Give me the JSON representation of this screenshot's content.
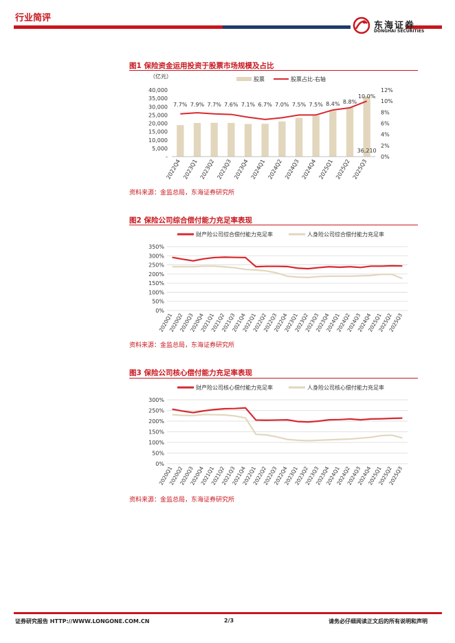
{
  "header": {
    "section": "行业简评",
    "logo_cn": "东海证券",
    "logo_en": "DONGHAI SECURITIES"
  },
  "fig1": {
    "title": "图1  保险资金运用投资于股票市场规模及占比",
    "source": "资料来源：金监总局，东海证券研究所"
  },
  "fig2": {
    "title": "图2  保险公司综合偿付能力充足率表现",
    "source": "资料来源：金监总局，东海证券研究所"
  },
  "fig3": {
    "title": "图3  保险公司核心偿付能力充足率表现",
    "source": "资料来源：金监总局，东海证券研究所"
  },
  "footer": {
    "left": "证券研究报告   HTTP://WWW.LONGONE.COM.CN",
    "page": "2/3",
    "right": "请务必仔细阅读正文后的所有说明和声明"
  },
  "colors": {
    "red": "#d7282f",
    "beige": "#e2d6bd",
    "grid": "#d9d9d9"
  },
  "chart_data": [
    {
      "type": "bar",
      "id": "fig1",
      "unit_label": "（亿元）",
      "categories": [
        "2022Q4",
        "2023Q1",
        "2023Q2",
        "2023Q3",
        "2023Q4",
        "2024Q1",
        "2024Q2",
        "2024Q3",
        "2024Q4",
        "2025Q1",
        "2025Q2",
        "2025Q3"
      ],
      "series": [
        {
          "name": "股票",
          "kind": "bar",
          "axis": "left",
          "color": "#e2d6bd",
          "values": [
            18900,
            20200,
            20300,
            20200,
            19600,
            19700,
            21100,
            23300,
            24500,
            27500,
            29500,
            36210
          ]
        },
        {
          "name": "股票占比-右轴",
          "kind": "line",
          "axis": "right",
          "color": "#d7282f",
          "values": [
            7.7,
            7.9,
            7.7,
            7.6,
            7.1,
            6.7,
            7.0,
            7.5,
            7.5,
            8.4,
            8.8,
            10.0
          ],
          "labels": [
            "7.7%",
            "7.9%",
            "7.7%",
            "7.6%",
            "7.1%",
            "6.7%",
            "7.0%",
            "7.5%",
            "7.5%",
            "8.4%",
            "8.8%",
            "10.0%"
          ]
        }
      ],
      "bar_label": {
        "index": 11,
        "text": "36,210"
      },
      "ylim": [
        0,
        40000
      ],
      "yticks": [
        0,
        5000,
        10000,
        15000,
        20000,
        25000,
        30000,
        35000,
        40000
      ],
      "ytick_labels": [
        "-",
        "5,000",
        "10,000",
        "15,000",
        "20,000",
        "25,000",
        "30,000",
        "35,000",
        "40,000"
      ],
      "y2lim": [
        0,
        12
      ],
      "y2ticks": [
        0,
        2,
        4,
        6,
        8,
        10,
        12
      ],
      "y2tick_labels": [
        "0%",
        "2%",
        "4%",
        "6%",
        "8%",
        "10%",
        "12%"
      ],
      "legend": "top-center",
      "grid": false
    },
    {
      "type": "line",
      "id": "fig2",
      "categories": [
        "2020Q1",
        "2020Q2",
        "2020Q3",
        "2020Q4",
        "2021Q1",
        "2021Q2",
        "2021Q3",
        "2021Q4",
        "2022Q1",
        "2022Q2",
        "2022Q3",
        "2022Q4",
        "2023Q1",
        "2023Q2",
        "2023Q3",
        "2023Q4",
        "2024Q1",
        "2024Q2",
        "2024Q3",
        "2024Q4",
        "2025Q1",
        "2025Q2",
        "2025Q3"
      ],
      "series": [
        {
          "name": "财产险公司综合偿付能力充足率",
          "color": "#d7282f",
          "values": [
            291,
            281,
            272,
            283,
            290,
            292,
            291,
            290,
            240,
            242,
            242,
            241,
            232,
            229,
            235,
            240,
            237,
            240,
            236,
            243,
            243,
            245,
            244
          ]
        },
        {
          "name": "人身险公司综合偿付能力充足率",
          "color": "#e2d6bd",
          "values": [
            240,
            240,
            240,
            243,
            243,
            239,
            234,
            225,
            222,
            217,
            206,
            188,
            183,
            181,
            186,
            188,
            188,
            188,
            190,
            192,
            198,
            198,
            175
          ]
        }
      ],
      "ylim": [
        0,
        350
      ],
      "yticks": [
        0,
        50,
        100,
        150,
        200,
        250,
        300,
        350
      ],
      "ytick_labels": [
        "0%",
        "50%",
        "100%",
        "150%",
        "200%",
        "250%",
        "300%",
        "350%"
      ],
      "legend": "top-center",
      "grid": true
    },
    {
      "type": "line",
      "id": "fig3",
      "categories": [
        "2020Q1",
        "2020Q2",
        "2020Q3",
        "2020Q4",
        "2021Q1",
        "2021Q2",
        "2021Q3",
        "2021Q4",
        "2022Q1",
        "2022Q2",
        "2022Q3",
        "2022Q4",
        "2023Q1",
        "2023Q2",
        "2023Q3",
        "2023Q4",
        "2024Q1",
        "2024Q2",
        "2024Q3",
        "2024Q4",
        "2025Q1",
        "2025Q2",
        "2025Q3"
      ],
      "series": [
        {
          "name": "财产险公司核心偿付能力充足率",
          "color": "#d7282f",
          "values": [
            256,
            247,
            240,
            248,
            254,
            258,
            259,
            262,
            205,
            204,
            205,
            206,
            198,
            196,
            200,
            206,
            207,
            210,
            206,
            210,
            211,
            213,
            214
          ]
        },
        {
          "name": "人身险公司核心偿付能力充足率",
          "color": "#e2d6bd",
          "values": [
            230,
            227,
            226,
            231,
            230,
            229,
            224,
            215,
            138,
            135,
            126,
            114,
            110,
            108,
            110,
            112,
            114,
            116,
            120,
            124,
            132,
            134,
            121
          ]
        }
      ],
      "ylim": [
        0,
        300
      ],
      "yticks": [
        0,
        50,
        100,
        150,
        200,
        250,
        300
      ],
      "ytick_labels": [
        "0%",
        "50%",
        "100%",
        "150%",
        "200%",
        "250%",
        "300%"
      ],
      "legend": "top-center",
      "grid": true
    }
  ]
}
